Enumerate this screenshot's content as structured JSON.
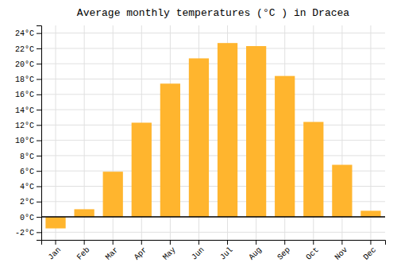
{
  "chart_data": {
    "type": "bar",
    "title": "Average monthly temperatures (°C ) in Dracea",
    "categories": [
      "Jan",
      "Feb",
      "Mar",
      "Apr",
      "May",
      "Jun",
      "Jul",
      "Aug",
      "Sep",
      "Oct",
      "Nov",
      "Dec"
    ],
    "values": [
      -1.5,
      1.0,
      5.9,
      12.3,
      17.4,
      20.7,
      22.7,
      22.3,
      18.4,
      12.4,
      6.8,
      0.8
    ],
    "color": "#FFB52E",
    "ylim": [
      -3,
      25
    ],
    "yticks": [
      {
        "value": -2,
        "label": "-2°C"
      },
      {
        "value": 0,
        "label": "0°C"
      },
      {
        "value": 2,
        "label": "2°C"
      },
      {
        "value": 4,
        "label": "4°C"
      },
      {
        "value": 6,
        "label": "6°C"
      },
      {
        "value": 8,
        "label": "8°C"
      },
      {
        "value": 10,
        "label": "10°C"
      },
      {
        "value": 12,
        "label": "12°C"
      },
      {
        "value": 14,
        "label": "14°C"
      },
      {
        "value": 16,
        "label": "16°C"
      },
      {
        "value": 18,
        "label": "18°C"
      },
      {
        "value": 20,
        "label": "20°C"
      },
      {
        "value": 22,
        "label": "22°C"
      },
      {
        "value": 24,
        "label": "24°C"
      }
    ],
    "grid": true
  }
}
